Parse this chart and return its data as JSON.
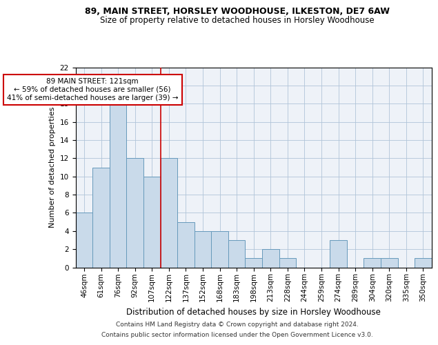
{
  "title1": "89, MAIN STREET, HORSLEY WOODHOUSE, ILKESTON, DE7 6AW",
  "title2": "Size of property relative to detached houses in Horsley Woodhouse",
  "xlabel": "Distribution of detached houses by size in Horsley Woodhouse",
  "ylabel": "Number of detached properties",
  "categories": [
    "46sqm",
    "61sqm",
    "76sqm",
    "92sqm",
    "107sqm",
    "122sqm",
    "137sqm",
    "152sqm",
    "168sqm",
    "183sqm",
    "198sqm",
    "213sqm",
    "228sqm",
    "244sqm",
    "259sqm",
    "274sqm",
    "289sqm",
    "304sqm",
    "320sqm",
    "335sqm",
    "350sqm"
  ],
  "values": [
    6,
    11,
    18,
    12,
    10,
    12,
    5,
    4,
    4,
    3,
    1,
    2,
    1,
    0,
    0,
    3,
    0,
    1,
    1,
    0,
    1
  ],
  "bar_color": "#c9daea",
  "bar_edge_color": "#6699bb",
  "highlight_index": 5,
  "highlight_line_color": "#cc0000",
  "annotation_text": "89 MAIN STREET: 121sqm\n← 59% of detached houses are smaller (56)\n41% of semi-detached houses are larger (39) →",
  "annotation_box_color": "#ffffff",
  "annotation_box_edge": "#cc0000",
  "ylim": [
    0,
    22
  ],
  "yticks": [
    0,
    2,
    4,
    6,
    8,
    10,
    12,
    14,
    16,
    18,
    20,
    22
  ],
  "footer1": "Contains HM Land Registry data © Crown copyright and database right 2024.",
  "footer2": "Contains public sector information licensed under the Open Government Licence v3.0.",
  "bg_color": "#ffffff",
  "plot_bg_color": "#eef2f8",
  "grid_color": "#b0c4d8",
  "title1_fontsize": 9,
  "title2_fontsize": 8.5,
  "xlabel_fontsize": 8.5,
  "ylabel_fontsize": 8,
  "tick_fontsize": 7.5,
  "footer_fontsize": 6.5,
  "annot_fontsize": 7.5
}
